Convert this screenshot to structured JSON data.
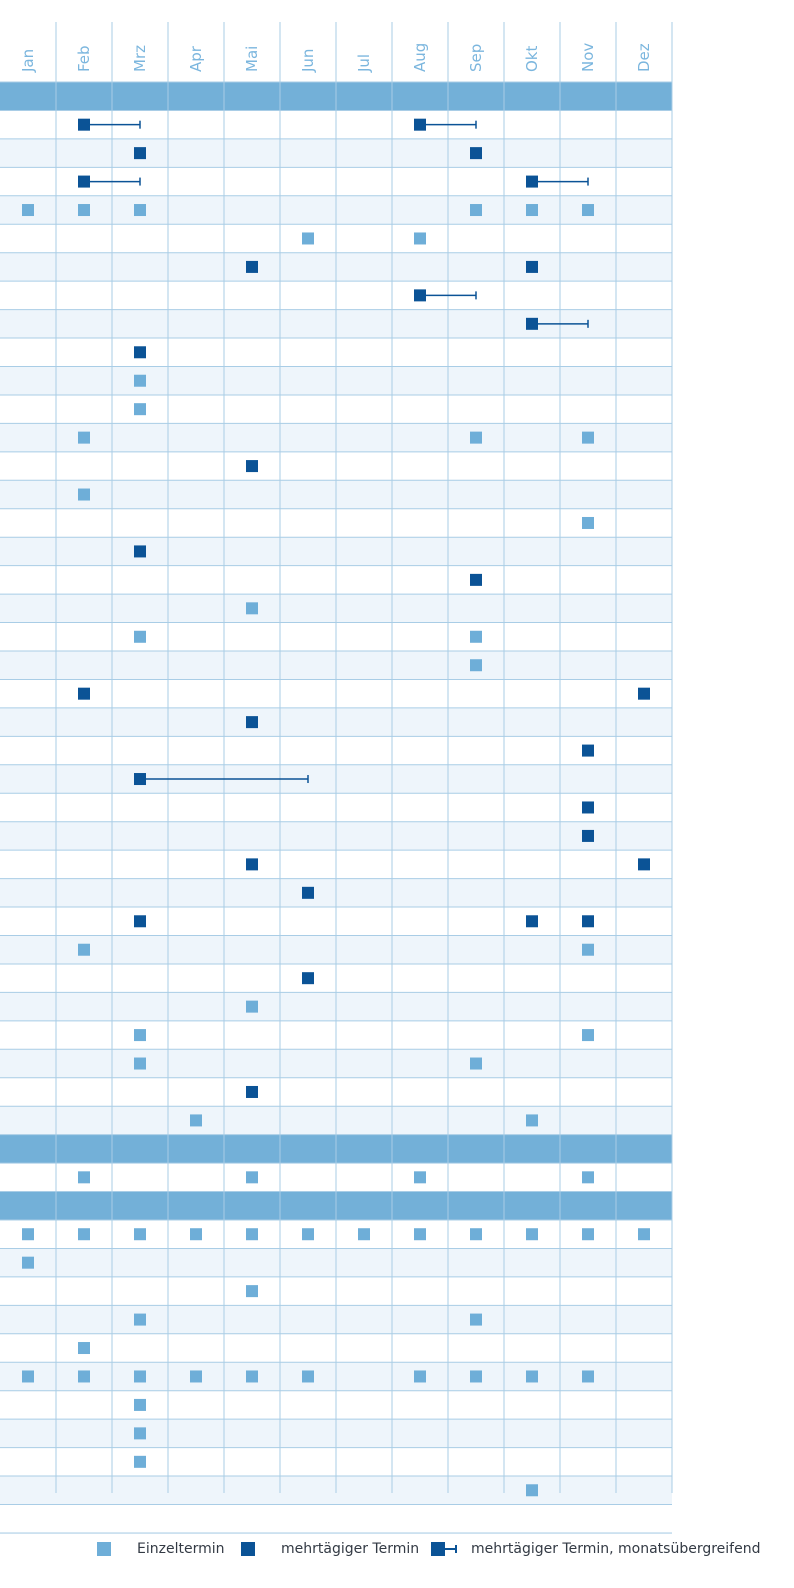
{
  "chart_data": {
    "type": "scatter",
    "months": [
      "Jan",
      "Feb",
      "Mrz",
      "Apr",
      "Mai",
      "Jun",
      "Jul",
      "Aug",
      "Sep",
      "Okt",
      "Nov",
      "Dez"
    ],
    "row_count": 53,
    "section_rows": [
      0,
      37,
      39
    ],
    "colors": {
      "band": "#73b0d8",
      "single": "#6eaed8",
      "multi": "#0b5396",
      "stripe": "#eef5fb",
      "grid": "#a9cde6",
      "month_label": "#7bb6de"
    },
    "events": [
      {
        "row": 1,
        "month": 2,
        "type": "span",
        "end": 3
      },
      {
        "row": 1,
        "month": 8,
        "type": "span",
        "end": 9
      },
      {
        "row": 2,
        "month": 3,
        "type": "multi"
      },
      {
        "row": 2,
        "month": 9,
        "type": "multi"
      },
      {
        "row": 3,
        "month": 2,
        "type": "span",
        "end": 3
      },
      {
        "row": 3,
        "month": 10,
        "type": "span",
        "end": 11
      },
      {
        "row": 4,
        "month": 1,
        "type": "single"
      },
      {
        "row": 4,
        "month": 2,
        "type": "single"
      },
      {
        "row": 4,
        "month": 3,
        "type": "single"
      },
      {
        "row": 4,
        "month": 9,
        "type": "single"
      },
      {
        "row": 4,
        "month": 10,
        "type": "single"
      },
      {
        "row": 4,
        "month": 11,
        "type": "single"
      },
      {
        "row": 5,
        "month": 6,
        "type": "single"
      },
      {
        "row": 5,
        "month": 8,
        "type": "single"
      },
      {
        "row": 6,
        "month": 5,
        "type": "multi"
      },
      {
        "row": 6,
        "month": 10,
        "type": "multi"
      },
      {
        "row": 7,
        "month": 8,
        "type": "span",
        "end": 9
      },
      {
        "row": 8,
        "month": 10,
        "type": "span",
        "end": 11
      },
      {
        "row": 9,
        "month": 3,
        "type": "multi"
      },
      {
        "row": 10,
        "month": 3,
        "type": "single"
      },
      {
        "row": 11,
        "month": 3,
        "type": "single"
      },
      {
        "row": 12,
        "month": 2,
        "type": "single"
      },
      {
        "row": 12,
        "month": 9,
        "type": "single"
      },
      {
        "row": 12,
        "month": 11,
        "type": "single"
      },
      {
        "row": 13,
        "month": 5,
        "type": "multi"
      },
      {
        "row": 14,
        "month": 2,
        "type": "single"
      },
      {
        "row": 15,
        "month": 11,
        "type": "single"
      },
      {
        "row": 16,
        "month": 3,
        "type": "multi"
      },
      {
        "row": 17,
        "month": 9,
        "type": "multi"
      },
      {
        "row": 18,
        "month": 5,
        "type": "single"
      },
      {
        "row": 19,
        "month": 3,
        "type": "single"
      },
      {
        "row": 19,
        "month": 9,
        "type": "single"
      },
      {
        "row": 20,
        "month": 9,
        "type": "single"
      },
      {
        "row": 21,
        "month": 2,
        "type": "multi"
      },
      {
        "row": 21,
        "month": 12,
        "type": "multi"
      },
      {
        "row": 22,
        "month": 5,
        "type": "multi"
      },
      {
        "row": 23,
        "month": 11,
        "type": "multi"
      },
      {
        "row": 24,
        "month": 3,
        "type": "span",
        "end": 6
      },
      {
        "row": 25,
        "month": 11,
        "type": "multi"
      },
      {
        "row": 26,
        "month": 11,
        "type": "multi"
      },
      {
        "row": 27,
        "month": 5,
        "type": "multi"
      },
      {
        "row": 27,
        "month": 12,
        "type": "multi"
      },
      {
        "row": 28,
        "month": 6,
        "type": "multi"
      },
      {
        "row": 29,
        "month": 3,
        "type": "multi"
      },
      {
        "row": 29,
        "month": 10,
        "type": "multi"
      },
      {
        "row": 29,
        "month": 11,
        "type": "multi"
      },
      {
        "row": 30,
        "month": 2,
        "type": "single"
      },
      {
        "row": 30,
        "month": 11,
        "type": "single"
      },
      {
        "row": 31,
        "month": 6,
        "type": "multi"
      },
      {
        "row": 32,
        "month": 5,
        "type": "single"
      },
      {
        "row": 33,
        "month": 3,
        "type": "single"
      },
      {
        "row": 33,
        "month": 11,
        "type": "single"
      },
      {
        "row": 34,
        "month": 3,
        "type": "single"
      },
      {
        "row": 34,
        "month": 9,
        "type": "single"
      },
      {
        "row": 35,
        "month": 5,
        "type": "multi"
      },
      {
        "row": 36,
        "month": 4,
        "type": "single"
      },
      {
        "row": 36,
        "month": 10,
        "type": "single"
      },
      {
        "row": 38,
        "month": 2,
        "type": "single"
      },
      {
        "row": 38,
        "month": 5,
        "type": "single"
      },
      {
        "row": 38,
        "month": 8,
        "type": "single"
      },
      {
        "row": 38,
        "month": 11,
        "type": "single"
      },
      {
        "row": 40,
        "month": 1,
        "type": "single"
      },
      {
        "row": 40,
        "month": 2,
        "type": "single"
      },
      {
        "row": 40,
        "month": 3,
        "type": "single"
      },
      {
        "row": 40,
        "month": 4,
        "type": "single"
      },
      {
        "row": 40,
        "month": 5,
        "type": "single"
      },
      {
        "row": 40,
        "month": 6,
        "type": "single"
      },
      {
        "row": 40,
        "month": 7,
        "type": "single"
      },
      {
        "row": 40,
        "month": 8,
        "type": "single"
      },
      {
        "row": 40,
        "month": 9,
        "type": "single"
      },
      {
        "row": 40,
        "month": 10,
        "type": "single"
      },
      {
        "row": 40,
        "month": 11,
        "type": "single"
      },
      {
        "row": 40,
        "month": 12,
        "type": "single"
      },
      {
        "row": 41,
        "month": 1,
        "type": "single"
      },
      {
        "row": 42,
        "month": 5,
        "type": "single"
      },
      {
        "row": 43,
        "month": 3,
        "type": "single"
      },
      {
        "row": 43,
        "month": 9,
        "type": "single"
      },
      {
        "row": 44,
        "month": 2,
        "type": "single"
      },
      {
        "row": 45,
        "month": 1,
        "type": "single"
      },
      {
        "row": 45,
        "month": 2,
        "type": "single"
      },
      {
        "row": 45,
        "month": 3,
        "type": "single"
      },
      {
        "row": 45,
        "month": 4,
        "type": "single"
      },
      {
        "row": 45,
        "month": 5,
        "type": "single"
      },
      {
        "row": 45,
        "month": 6,
        "type": "single"
      },
      {
        "row": 45,
        "month": 8,
        "type": "single"
      },
      {
        "row": 45,
        "month": 9,
        "type": "single"
      },
      {
        "row": 45,
        "month": 10,
        "type": "single"
      },
      {
        "row": 45,
        "month": 11,
        "type": "single"
      },
      {
        "row": 46,
        "month": 3,
        "type": "single"
      },
      {
        "row": 47,
        "month": 3,
        "type": "single"
      },
      {
        "row": 48,
        "month": 3,
        "type": "single"
      },
      {
        "row": 49,
        "month": 10,
        "type": "single"
      }
    ],
    "legend": [
      {
        "type": "single",
        "label": "Einzeltermin"
      },
      {
        "type": "multi",
        "label": "mehrtägiger Termin"
      },
      {
        "type": "span",
        "label": "mehrtägiger Termin, monatsübergreifend"
      }
    ]
  }
}
